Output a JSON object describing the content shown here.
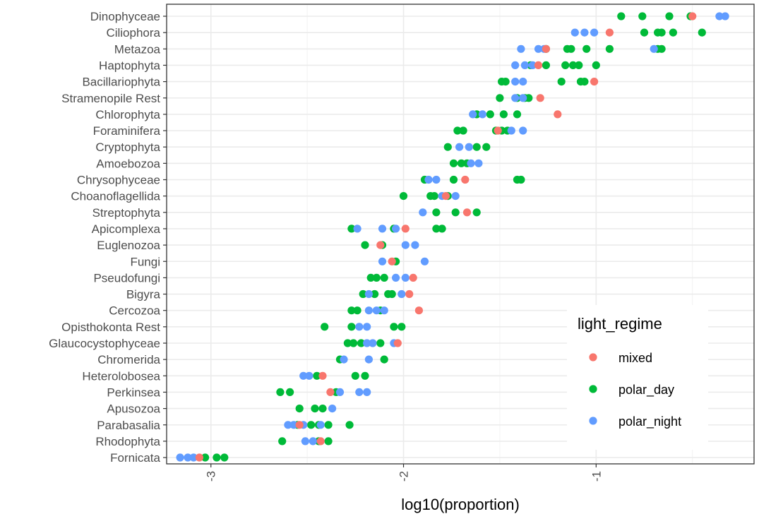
{
  "chart_data": {
    "type": "scatter",
    "title": "",
    "xlabel": "log10(proportion)",
    "ylabel": "",
    "xlim": [
      -3.23,
      -0.18
    ],
    "x_ticks": [
      -3,
      -2,
      -1
    ],
    "x_tick_labels": [
      "-3",
      "-2",
      "-1"
    ],
    "x_tick_rotation": -90,
    "grid": true,
    "legend": {
      "title": "light_regime",
      "position": "bottom-right-inside",
      "entries": [
        "mixed",
        "polar_day",
        "polar_night"
      ]
    },
    "colors": {
      "mixed": "#F8766D",
      "polar_day": "#00BA38",
      "polar_night": "#619CFF"
    },
    "categories": [
      "Dinophyceae",
      "Ciliophora",
      "Metazoa",
      "Haptophyta",
      "Bacillariophyta",
      "Stramenopile Rest",
      "Chlorophyta",
      "Foraminifera",
      "Cryptophyta",
      "Amoebozoa",
      "Chrysophyceae",
      "Choanoflagellida",
      "Streptophyta",
      "Apicomplexa",
      "Euglenozoa",
      "Fungi",
      "Pseudofungi",
      "Bigyra",
      "Cercozoa",
      "Opisthokonta Rest",
      "Glaucocystophyceae",
      "Chromerida",
      "Heterolobosea",
      "Perkinsea",
      "Apusozoa",
      "Parabasalia",
      "Rhodophyta",
      "Fornicata"
    ],
    "series": [
      {
        "name": "polar_day",
        "points": [
          [
            "Dinophyceae",
            -0.87
          ],
          [
            "Dinophyceae",
            -0.76
          ],
          [
            "Dinophyceae",
            -0.62
          ],
          [
            "Dinophyceae",
            -0.51
          ],
          [
            "Ciliophora",
            -0.75
          ],
          [
            "Ciliophora",
            -0.68
          ],
          [
            "Ciliophora",
            -0.66
          ],
          [
            "Ciliophora",
            -0.6
          ],
          [
            "Ciliophora",
            -0.45
          ],
          [
            "Metazoa",
            -1.26
          ],
          [
            "Metazoa",
            -1.15
          ],
          [
            "Metazoa",
            -1.13
          ],
          [
            "Metazoa",
            -1.05
          ],
          [
            "Metazoa",
            -0.93
          ],
          [
            "Metazoa",
            -0.68
          ],
          [
            "Metazoa",
            -0.66
          ],
          [
            "Haptophyta",
            -1.34
          ],
          [
            "Haptophyta",
            -1.26
          ],
          [
            "Haptophyta",
            -1.16
          ],
          [
            "Haptophyta",
            -1.12
          ],
          [
            "Haptophyta",
            -1.09
          ],
          [
            "Haptophyta",
            -1.0
          ],
          [
            "Bacillariophyta",
            -1.49
          ],
          [
            "Bacillariophyta",
            -1.47
          ],
          [
            "Bacillariophyta",
            -1.18
          ],
          [
            "Bacillariophyta",
            -1.08
          ],
          [
            "Bacillariophyta",
            -1.06
          ],
          [
            "Stramenopile Rest",
            -1.5
          ],
          [
            "Stramenopile Rest",
            -1.41
          ],
          [
            "Stramenopile Rest",
            -1.37
          ],
          [
            "Stramenopile Rest",
            -1.35
          ],
          [
            "Chlorophyta",
            -1.62
          ],
          [
            "Chlorophyta",
            -1.55
          ],
          [
            "Chlorophyta",
            -1.48
          ],
          [
            "Chlorophyta",
            -1.41
          ],
          [
            "Foraminifera",
            -1.72
          ],
          [
            "Foraminifera",
            -1.69
          ],
          [
            "Foraminifera",
            -1.52
          ],
          [
            "Foraminifera",
            -1.49
          ],
          [
            "Foraminifera",
            -1.46
          ],
          [
            "Cryptophyta",
            -1.77
          ],
          [
            "Cryptophyta",
            -1.62
          ],
          [
            "Cryptophyta",
            -1.57
          ],
          [
            "Amoebozoa",
            -1.74
          ],
          [
            "Amoebozoa",
            -1.7
          ],
          [
            "Amoebozoa",
            -1.67
          ],
          [
            "Chrysophyceae",
            -1.89
          ],
          [
            "Chrysophyceae",
            -1.74
          ],
          [
            "Chrysophyceae",
            -1.41
          ],
          [
            "Chrysophyceae",
            -1.39
          ],
          [
            "Choanoflagellida",
            -2.0
          ],
          [
            "Choanoflagellida",
            -1.86
          ],
          [
            "Choanoflagellida",
            -1.84
          ],
          [
            "Choanoflagellida",
            -1.77
          ],
          [
            "Streptophyta",
            -1.83
          ],
          [
            "Streptophyta",
            -1.73
          ],
          [
            "Streptophyta",
            -1.62
          ],
          [
            "Apicomplexa",
            -2.27
          ],
          [
            "Apicomplexa",
            -2.05
          ],
          [
            "Apicomplexa",
            -1.83
          ],
          [
            "Apicomplexa",
            -1.8
          ],
          [
            "Euglenozoa",
            -2.2
          ],
          [
            "Euglenozoa",
            -2.11
          ],
          [
            "Fungi",
            -2.04
          ],
          [
            "Pseudofungi",
            -2.17
          ],
          [
            "Pseudofungi",
            -2.14
          ],
          [
            "Pseudofungi",
            -2.1
          ],
          [
            "Bigyra",
            -2.21
          ],
          [
            "Bigyra",
            -2.15
          ],
          [
            "Bigyra",
            -2.08
          ],
          [
            "Bigyra",
            -2.06
          ],
          [
            "Cercozoa",
            -2.27
          ],
          [
            "Cercozoa",
            -2.24
          ],
          [
            "Cercozoa",
            -2.12
          ],
          [
            "Opisthokonta Rest",
            -2.41
          ],
          [
            "Opisthokonta Rest",
            -2.27
          ],
          [
            "Opisthokonta Rest",
            -2.05
          ],
          [
            "Opisthokonta Rest",
            -2.01
          ],
          [
            "Glaucocystophyceae",
            -2.29
          ],
          [
            "Glaucocystophyceae",
            -2.26
          ],
          [
            "Glaucocystophyceae",
            -2.22
          ],
          [
            "Glaucocystophyceae",
            -2.12
          ],
          [
            "Chromerida",
            -2.33
          ],
          [
            "Chromerida",
            -2.1
          ],
          [
            "Heterolobosea",
            -2.45
          ],
          [
            "Heterolobosea",
            -2.25
          ],
          [
            "Heterolobosea",
            -2.2
          ],
          [
            "Perkinsea",
            -2.64
          ],
          [
            "Perkinsea",
            -2.59
          ],
          [
            "Perkinsea",
            -2.35
          ],
          [
            "Apusozoa",
            -2.54
          ],
          [
            "Apusozoa",
            -2.46
          ],
          [
            "Apusozoa",
            -2.42
          ],
          [
            "Parabasalia",
            -2.55
          ],
          [
            "Parabasalia",
            -2.48
          ],
          [
            "Parabasalia",
            -2.44
          ],
          [
            "Parabasalia",
            -2.39
          ],
          [
            "Parabasalia",
            -2.28
          ],
          [
            "Rhodophyta",
            -2.63
          ],
          [
            "Rhodophyta",
            -2.44
          ],
          [
            "Rhodophyta",
            -2.39
          ],
          [
            "Fornicata",
            -3.03
          ],
          [
            "Fornicata",
            -2.97
          ],
          [
            "Fornicata",
            -2.93
          ]
        ]
      },
      {
        "name": "polar_night",
        "points": [
          [
            "Dinophyceae",
            -0.36
          ],
          [
            "Dinophyceae",
            -0.33
          ],
          [
            "Ciliophora",
            -1.11
          ],
          [
            "Ciliophora",
            -1.06
          ],
          [
            "Ciliophora",
            -1.01
          ],
          [
            "Metazoa",
            -1.39
          ],
          [
            "Metazoa",
            -1.3
          ],
          [
            "Metazoa",
            -1.27
          ],
          [
            "Metazoa",
            -0.7
          ],
          [
            "Haptophyta",
            -1.42
          ],
          [
            "Haptophyta",
            -1.37
          ],
          [
            "Haptophyta",
            -1.33
          ],
          [
            "Bacillariophyta",
            -1.42
          ],
          [
            "Bacillariophyta",
            -1.38
          ],
          [
            "Stramenopile Rest",
            -1.42
          ],
          [
            "Stramenopile Rest",
            -1.38
          ],
          [
            "Chlorophyta",
            -1.64
          ],
          [
            "Chlorophyta",
            -1.59
          ],
          [
            "Foraminifera",
            -1.44
          ],
          [
            "Foraminifera",
            -1.38
          ],
          [
            "Cryptophyta",
            -1.71
          ],
          [
            "Cryptophyta",
            -1.66
          ],
          [
            "Amoebozoa",
            -1.65
          ],
          [
            "Amoebozoa",
            -1.61
          ],
          [
            "Chrysophyceae",
            -1.87
          ],
          [
            "Chrysophyceae",
            -1.83
          ],
          [
            "Choanoflagellida",
            -1.8
          ],
          [
            "Choanoflagellida",
            -1.73
          ],
          [
            "Streptophyta",
            -1.9
          ],
          [
            "Apicomplexa",
            -2.24
          ],
          [
            "Apicomplexa",
            -2.11
          ],
          [
            "Apicomplexa",
            -2.04
          ],
          [
            "Euglenozoa",
            -1.99
          ],
          [
            "Euglenozoa",
            -1.94
          ],
          [
            "Fungi",
            -2.11
          ],
          [
            "Fungi",
            -1.89
          ],
          [
            "Pseudofungi",
            -2.04
          ],
          [
            "Pseudofungi",
            -1.99
          ],
          [
            "Bigyra",
            -2.18
          ],
          [
            "Bigyra",
            -2.01
          ],
          [
            "Cercozoa",
            -2.18
          ],
          [
            "Cercozoa",
            -2.14
          ],
          [
            "Cercozoa",
            -2.1
          ],
          [
            "Opisthokonta Rest",
            -2.23
          ],
          [
            "Opisthokonta Rest",
            -2.19
          ],
          [
            "Glaucocystophyceae",
            -2.19
          ],
          [
            "Glaucocystophyceae",
            -2.16
          ],
          [
            "Glaucocystophyceae",
            -2.05
          ],
          [
            "Chromerida",
            -2.31
          ],
          [
            "Chromerida",
            -2.18
          ],
          [
            "Heterolobosea",
            -2.52
          ],
          [
            "Heterolobosea",
            -2.49
          ],
          [
            "Perkinsea",
            -2.33
          ],
          [
            "Perkinsea",
            -2.23
          ],
          [
            "Perkinsea",
            -2.19
          ],
          [
            "Apusozoa",
            -2.37
          ],
          [
            "Parabasalia",
            -2.6
          ],
          [
            "Parabasalia",
            -2.57
          ],
          [
            "Parabasalia",
            -2.52
          ],
          [
            "Parabasalia",
            -2.43
          ],
          [
            "Rhodophyta",
            -2.51
          ],
          [
            "Rhodophyta",
            -2.47
          ],
          [
            "Fornicata",
            -3.16
          ],
          [
            "Fornicata",
            -3.12
          ],
          [
            "Fornicata",
            -3.09
          ]
        ]
      },
      {
        "name": "mixed",
        "points": [
          [
            "Dinophyceae",
            -0.5
          ],
          [
            "Ciliophora",
            -0.93
          ],
          [
            "Metazoa",
            -1.26
          ],
          [
            "Haptophyta",
            -1.3
          ],
          [
            "Bacillariophyta",
            -1.01
          ],
          [
            "Stramenopile Rest",
            -1.29
          ],
          [
            "Chlorophyta",
            -1.2
          ],
          [
            "Foraminifera",
            -1.51
          ],
          [
            "Chrysophyceae",
            -1.68
          ],
          [
            "Choanoflagellida",
            -1.78
          ],
          [
            "Streptophyta",
            -1.67
          ],
          [
            "Apicomplexa",
            -1.99
          ],
          [
            "Euglenozoa",
            -2.12
          ],
          [
            "Fungi",
            -2.06
          ],
          [
            "Pseudofungi",
            -1.95
          ],
          [
            "Bigyra",
            -1.97
          ],
          [
            "Cercozoa",
            -1.92
          ],
          [
            "Glaucocystophyceae",
            -2.03
          ],
          [
            "Heterolobosea",
            -2.42
          ],
          [
            "Perkinsea",
            -2.38
          ],
          [
            "Parabasalia",
            -2.54
          ],
          [
            "Rhodophyta",
            -2.43
          ],
          [
            "Fornicata",
            -3.06
          ]
        ]
      }
    ]
  }
}
